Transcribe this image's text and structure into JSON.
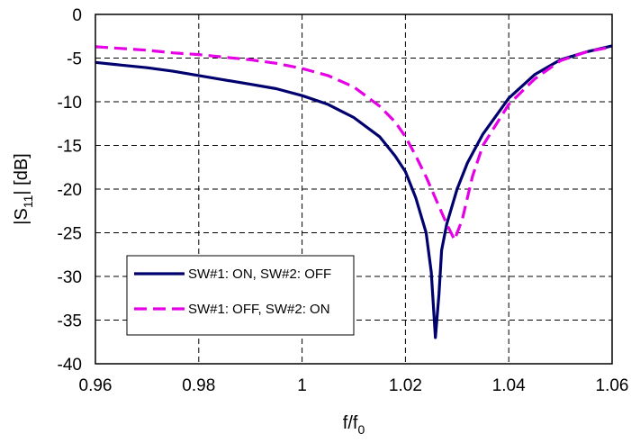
{
  "chart_data": {
    "type": "line",
    "xlabel": "f/f",
    "xlabel_sub": "0",
    "ylabel_prefix": "|S",
    "ylabel_sub": "11",
    "ylabel_suffix": "| [dB]",
    "xlim": [
      0.96,
      1.06
    ],
    "ylim": [
      -40,
      0
    ],
    "xticks": [
      0.96,
      0.98,
      1.0,
      1.02,
      1.04,
      1.06
    ],
    "xtick_labels": [
      "0.96",
      "0.98",
      "1",
      "1.02",
      "1.04",
      "1.06"
    ],
    "yticks": [
      0,
      -5,
      -10,
      -15,
      -20,
      -25,
      -30,
      -35,
      -40
    ],
    "ytick_labels": [
      "0",
      "-5",
      "-10",
      "-15",
      "-20",
      "-25",
      "-30",
      "-35",
      "-40"
    ],
    "grid": "dashed",
    "legend_position": "bottom-left",
    "series": [
      {
        "name": "SW#1: ON, SW#2: OFF",
        "color": "#00006e",
        "style": "solid",
        "x": [
          0.96,
          0.965,
          0.97,
          0.975,
          0.98,
          0.985,
          0.99,
          0.995,
          1.0,
          1.005,
          1.01,
          1.015,
          1.018,
          1.02,
          1.022,
          1.024,
          1.025,
          1.0258,
          1.0265,
          1.027,
          1.028,
          1.03,
          1.032,
          1.035,
          1.04,
          1.045,
          1.05,
          1.055,
          1.06
        ],
        "y": [
          -5.5,
          -5.8,
          -6.1,
          -6.5,
          -7.0,
          -7.5,
          -8.0,
          -8.5,
          -9.3,
          -10.3,
          -11.8,
          -14.0,
          -16.2,
          -18.0,
          -21.0,
          -25.0,
          -29.5,
          -37.0,
          -32.0,
          -27.0,
          -24.0,
          -20.0,
          -17.0,
          -13.7,
          -9.6,
          -6.9,
          -5.2,
          -4.3,
          -3.6
        ]
      },
      {
        "name": "SW#1: OFF, SW#2: ON",
        "color": "#e600e6",
        "style": "dashed",
        "x": [
          0.96,
          0.965,
          0.97,
          0.975,
          0.98,
          0.985,
          0.99,
          0.995,
          1.0,
          1.005,
          1.01,
          1.015,
          1.018,
          1.02,
          1.022,
          1.024,
          1.026,
          1.028,
          1.0295,
          1.031,
          1.033,
          1.035,
          1.04,
          1.045,
          1.05,
          1.055,
          1.06
        ],
        "y": [
          -3.7,
          -3.9,
          -4.1,
          -4.4,
          -4.6,
          -4.9,
          -5.2,
          -5.6,
          -6.2,
          -7.0,
          -8.3,
          -10.5,
          -12.3,
          -14.0,
          -16.2,
          -18.6,
          -21.3,
          -24.0,
          -25.8,
          -23.5,
          -18.5,
          -15.0,
          -10.3,
          -7.4,
          -5.3,
          -4.3,
          -3.7
        ]
      }
    ]
  }
}
